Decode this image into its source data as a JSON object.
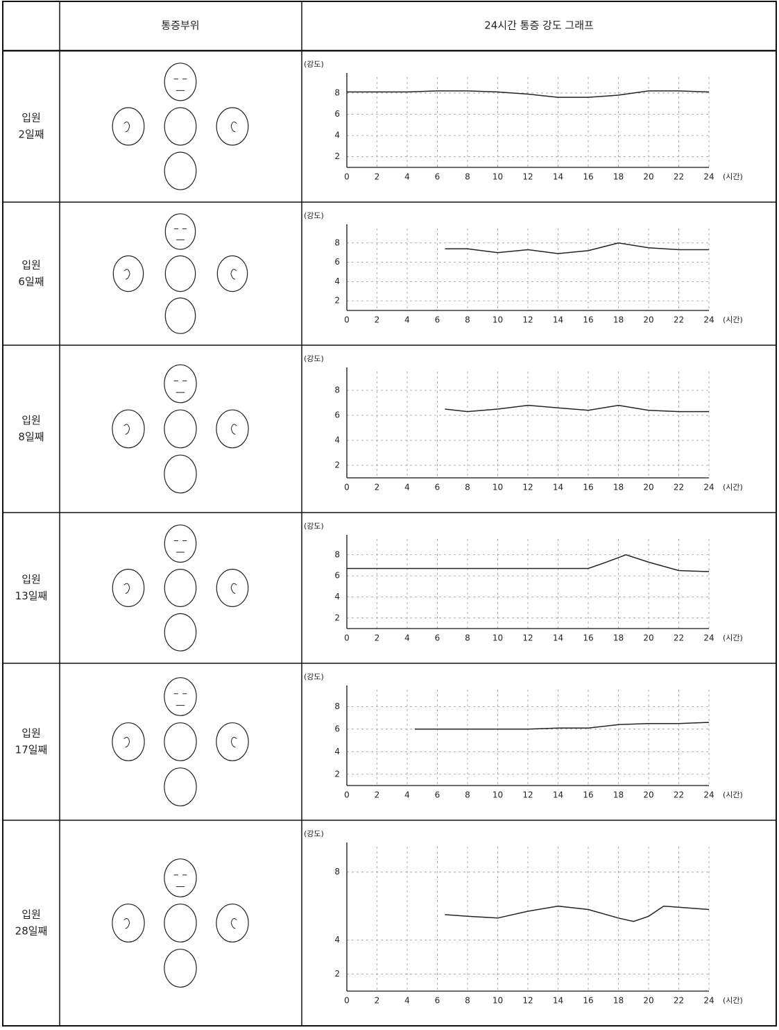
{
  "header": [
    "통증부위",
    "24시간 통증 강도 그래프"
  ],
  "rows": [
    {
      "label": [
        "입원",
        "2일째"
      ],
      "chart": {
        "type": "line",
        "y_label": "(강도)",
        "x_label": "(시간)",
        "xlim": [
          0,
          24
        ],
        "ylim": [
          1,
          9.5
        ],
        "xticks": [
          0,
          2,
          4,
          6,
          8,
          10,
          12,
          14,
          16,
          18,
          20,
          22,
          24
        ],
        "yticks": [
          2,
          4,
          6,
          8
        ],
        "grid": true,
        "color": "#222222",
        "x": [
          0,
          2,
          4,
          6,
          8,
          10,
          12,
          14,
          16,
          18,
          20,
          22,
          24
        ],
        "values": [
          8.1,
          8.1,
          8.1,
          8.2,
          8.2,
          8.1,
          7.9,
          7.6,
          7.6,
          7.8,
          8.2,
          8.2,
          8.1
        ]
      }
    },
    {
      "label": [
        "입원",
        "6일째"
      ],
      "chart": {
        "type": "line",
        "y_label": "(강도)",
        "x_label": "(시간)",
        "xlim": [
          0,
          24
        ],
        "ylim": [
          1,
          9.5
        ],
        "xticks": [
          0,
          2,
          4,
          6,
          8,
          10,
          12,
          14,
          16,
          18,
          20,
          22,
          24
        ],
        "yticks": [
          2,
          4,
          6,
          8
        ],
        "grid": true,
        "color": "#222222",
        "x": [
          6.5,
          8,
          10,
          12,
          14,
          16,
          18,
          20,
          22,
          24
        ],
        "values": [
          7.4,
          7.4,
          7.0,
          7.3,
          6.9,
          7.2,
          8.0,
          7.5,
          7.3,
          7.3
        ]
      }
    },
    {
      "label": [
        "입원",
        "8일째"
      ],
      "chart": {
        "type": "line",
        "y_label": "(강도)",
        "x_label": "(시간)",
        "xlim": [
          0,
          24
        ],
        "ylim": [
          1,
          9.5
        ],
        "xticks": [
          0,
          2,
          4,
          6,
          8,
          10,
          12,
          14,
          16,
          18,
          20,
          22,
          24
        ],
        "yticks": [
          2,
          4,
          6,
          8
        ],
        "grid": true,
        "color": "#222222",
        "x": [
          6.5,
          8,
          10,
          12,
          14,
          16,
          18,
          20,
          22,
          24
        ],
        "values": [
          6.5,
          6.3,
          6.5,
          6.8,
          6.6,
          6.4,
          6.8,
          6.4,
          6.3,
          6.3
        ]
      }
    },
    {
      "label": [
        "입원",
        "13일째"
      ],
      "chart": {
        "type": "line",
        "y_label": "(강도)",
        "x_label": "(시간)",
        "xlim": [
          0,
          24
        ],
        "ylim": [
          1,
          9.5
        ],
        "xticks": [
          0,
          2,
          4,
          6,
          8,
          10,
          12,
          14,
          16,
          18,
          20,
          22,
          24
        ],
        "yticks": [
          2,
          4,
          6,
          8
        ],
        "grid": true,
        "color": "#222222",
        "x": [
          0,
          4,
          8,
          12,
          16,
          17,
          18.5,
          20,
          22,
          24
        ],
        "values": [
          6.7,
          6.7,
          6.7,
          6.7,
          6.7,
          7.2,
          8.0,
          7.3,
          6.5,
          6.4
        ]
      }
    },
    {
      "label": [
        "입원",
        "17일째"
      ],
      "chart": {
        "type": "line",
        "y_label": "(강도)",
        "x_label": "(시간)",
        "xlim": [
          0,
          24
        ],
        "ylim": [
          1,
          9.5
        ],
        "xticks": [
          0,
          2,
          4,
          6,
          8,
          10,
          12,
          14,
          16,
          18,
          20,
          22,
          24
        ],
        "yticks": [
          2,
          4,
          6,
          8
        ],
        "grid": true,
        "color": "#222222",
        "x": [
          4.5,
          6,
          8,
          10,
          12,
          14,
          16,
          18,
          20,
          22,
          24
        ],
        "values": [
          6.0,
          6.0,
          6.0,
          6.0,
          6.0,
          6.1,
          6.1,
          6.4,
          6.5,
          6.5,
          6.6
        ]
      }
    },
    {
      "label": [
        "입원",
        "28일째"
      ],
      "chart": {
        "type": "line",
        "y_label": "(강도)",
        "x_label": "(시간)",
        "xlim": [
          0,
          24
        ],
        "ylim": [
          1,
          9.5
        ],
        "xticks": [
          0,
          2,
          4,
          6,
          8,
          10,
          12,
          14,
          16,
          18,
          20,
          22,
          24
        ],
        "yticks": [
          2,
          4,
          8
        ],
        "grid": true,
        "color": "#222222",
        "x": [
          6.5,
          8,
          10,
          12,
          14,
          16,
          18,
          19,
          20,
          21,
          24
        ],
        "values": [
          5.5,
          5.4,
          5.3,
          5.7,
          6.0,
          5.8,
          5.3,
          5.1,
          5.4,
          6.0,
          5.8
        ]
      }
    }
  ]
}
